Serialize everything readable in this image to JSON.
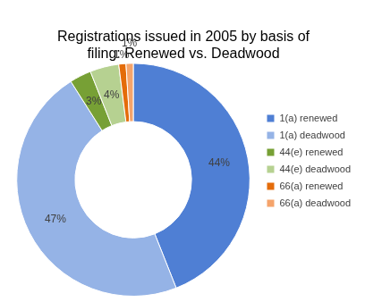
{
  "chart_data": {
    "type": "doughnut",
    "title": "Registrations issued in 2005 by basis of filing: Renewed vs. Deadwood",
    "categories": [
      "1(a) renewed",
      "1(a) deadwood",
      "44(e) renewed",
      "44(e) deadwood",
      "66(a) renewed",
      "66(a) deadwood"
    ],
    "values": [
      44,
      47,
      3,
      4,
      1,
      1
    ],
    "value_labels": [
      "44%",
      "47%",
      "3%",
      "4%",
      "1%",
      "1%"
    ],
    "colors": [
      "#4f7fd4",
      "#95b3e6",
      "#77a035",
      "#b6d191",
      "#e46c0a",
      "#f5a46b"
    ],
    "data_labels": true,
    "legend": "right"
  }
}
